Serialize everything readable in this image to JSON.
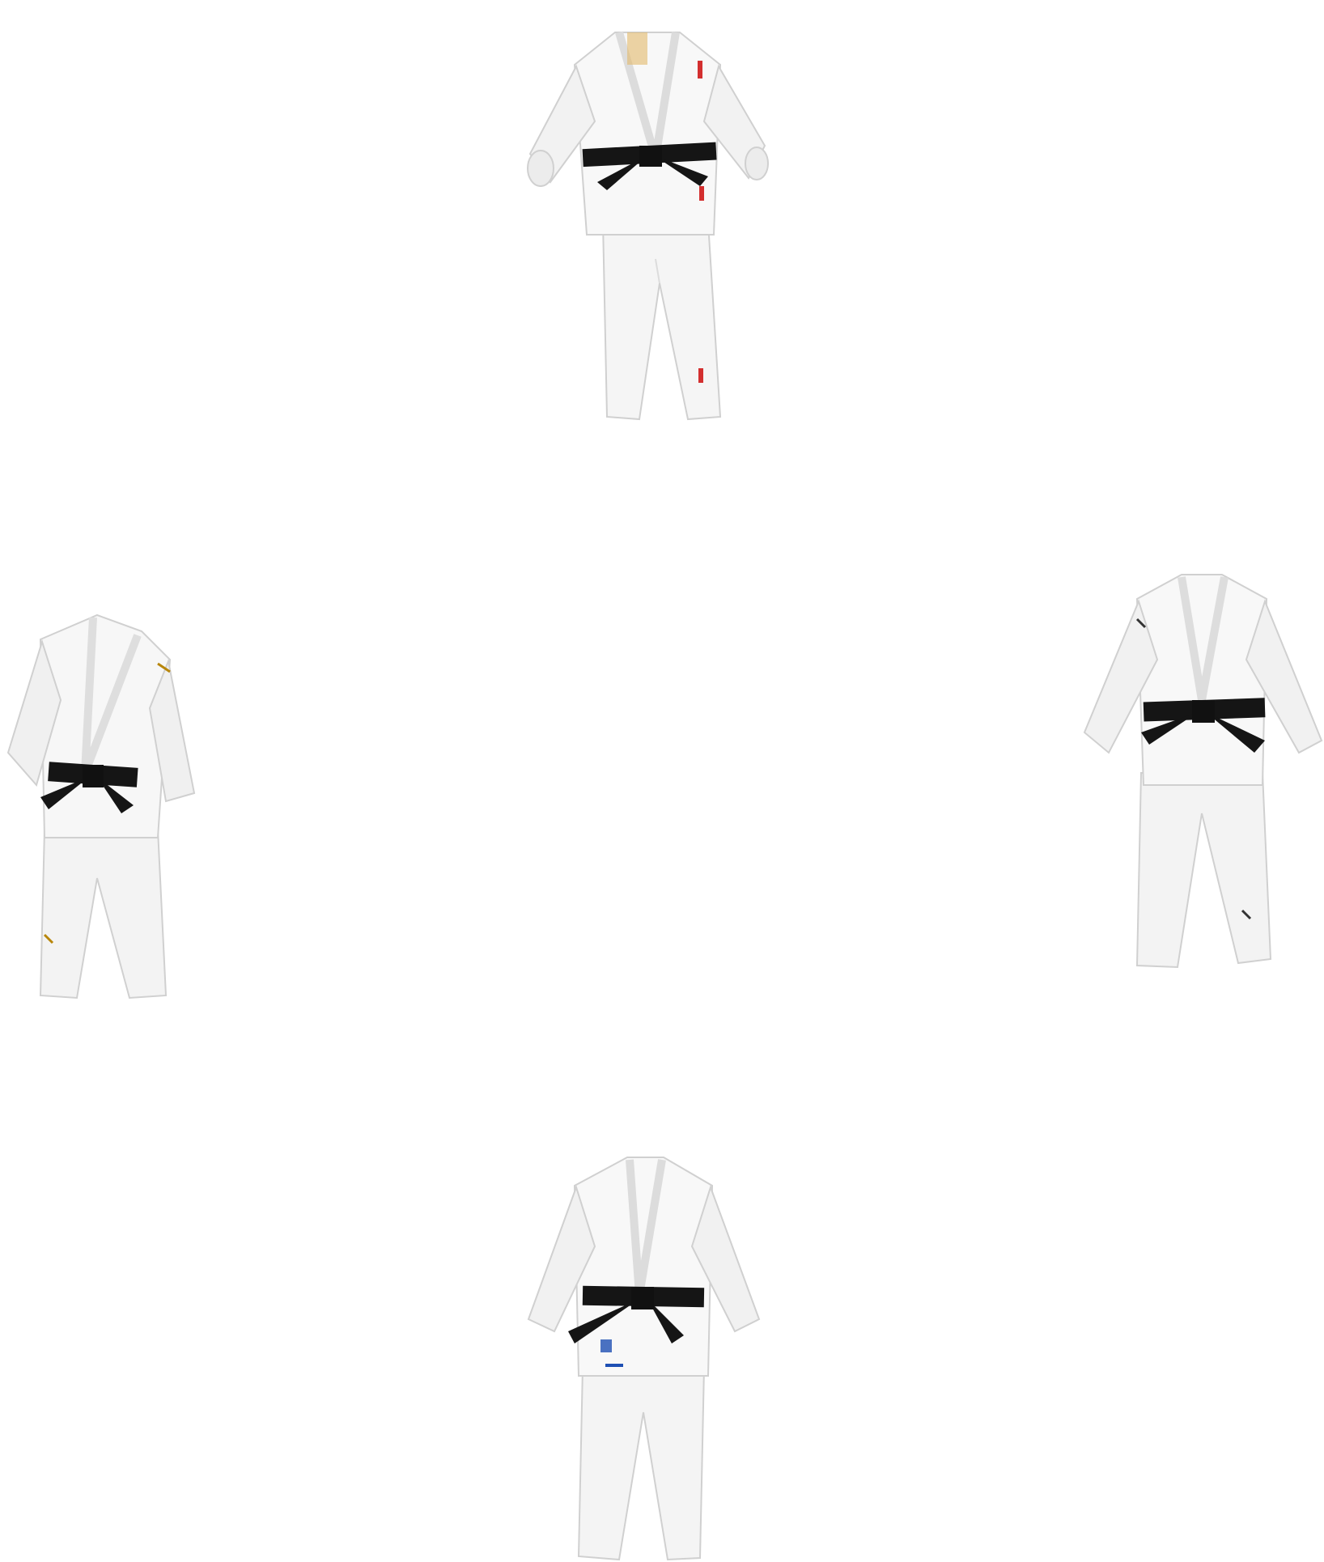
{
  "page": {
    "background": "#ffffff"
  },
  "items": [
    {
      "name": "judogi-top",
      "icon": "white-judogi-with-black-belt-red-accents",
      "accent": "#d32f2f"
    },
    {
      "name": "judogi-left",
      "icon": "white-judogi-with-black-belt-gold-accents",
      "accent": "#b8860b"
    },
    {
      "name": "judogi-right",
      "icon": "white-judogi-with-black-belt-dark-accents",
      "accent": "#333333"
    },
    {
      "name": "judogi-bottom",
      "icon": "white-judogi-with-black-belt-blue-accents",
      "accent": "#1e4fb3"
    }
  ],
  "colors": {
    "fabric": "#f7f7f7",
    "fabric_shade": "#e6e6e6",
    "outline": "#cfcfcf",
    "belt": "#151515"
  }
}
